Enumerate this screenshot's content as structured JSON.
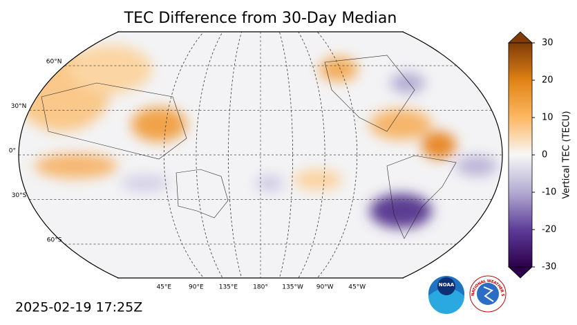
{
  "title": "TEC Difference from 30-Day Median",
  "timestamp": "2025-02-19 17:25Z",
  "map": {
    "lat_labels": [
      {
        "value": 60,
        "label": "60°N"
      },
      {
        "value": 30,
        "label": "30°N"
      },
      {
        "value": 0,
        "label": "0°"
      },
      {
        "value": -30,
        "label": "30°S"
      },
      {
        "value": -60,
        "label": "60°S"
      }
    ],
    "lon_labels": [
      {
        "value": 45,
        "label": "45°E"
      },
      {
        "value": 90,
        "label": "90°E"
      },
      {
        "value": 135,
        "label": "135°E"
      },
      {
        "value": 180,
        "label": "180°"
      },
      {
        "value": 225,
        "label": "135°W"
      },
      {
        "value": 270,
        "label": "90°W"
      },
      {
        "value": 315,
        "label": "45°W"
      }
    ]
  },
  "colorbar": {
    "label": "Vertical TEC (TECU)",
    "lim": [
      -30,
      30
    ],
    "ticks": [
      30,
      20,
      10,
      0,
      -10,
      -20,
      -30
    ],
    "colors": [
      "#2d004b",
      "#5e3c99",
      "#b2abd2",
      "#f7f7f7",
      "#fdb863",
      "#e08214",
      "#7f3b08"
    ]
  },
  "logos": {
    "noaa": "NOAA",
    "nws": "NATIONAL WEATHER SERVICE"
  }
}
